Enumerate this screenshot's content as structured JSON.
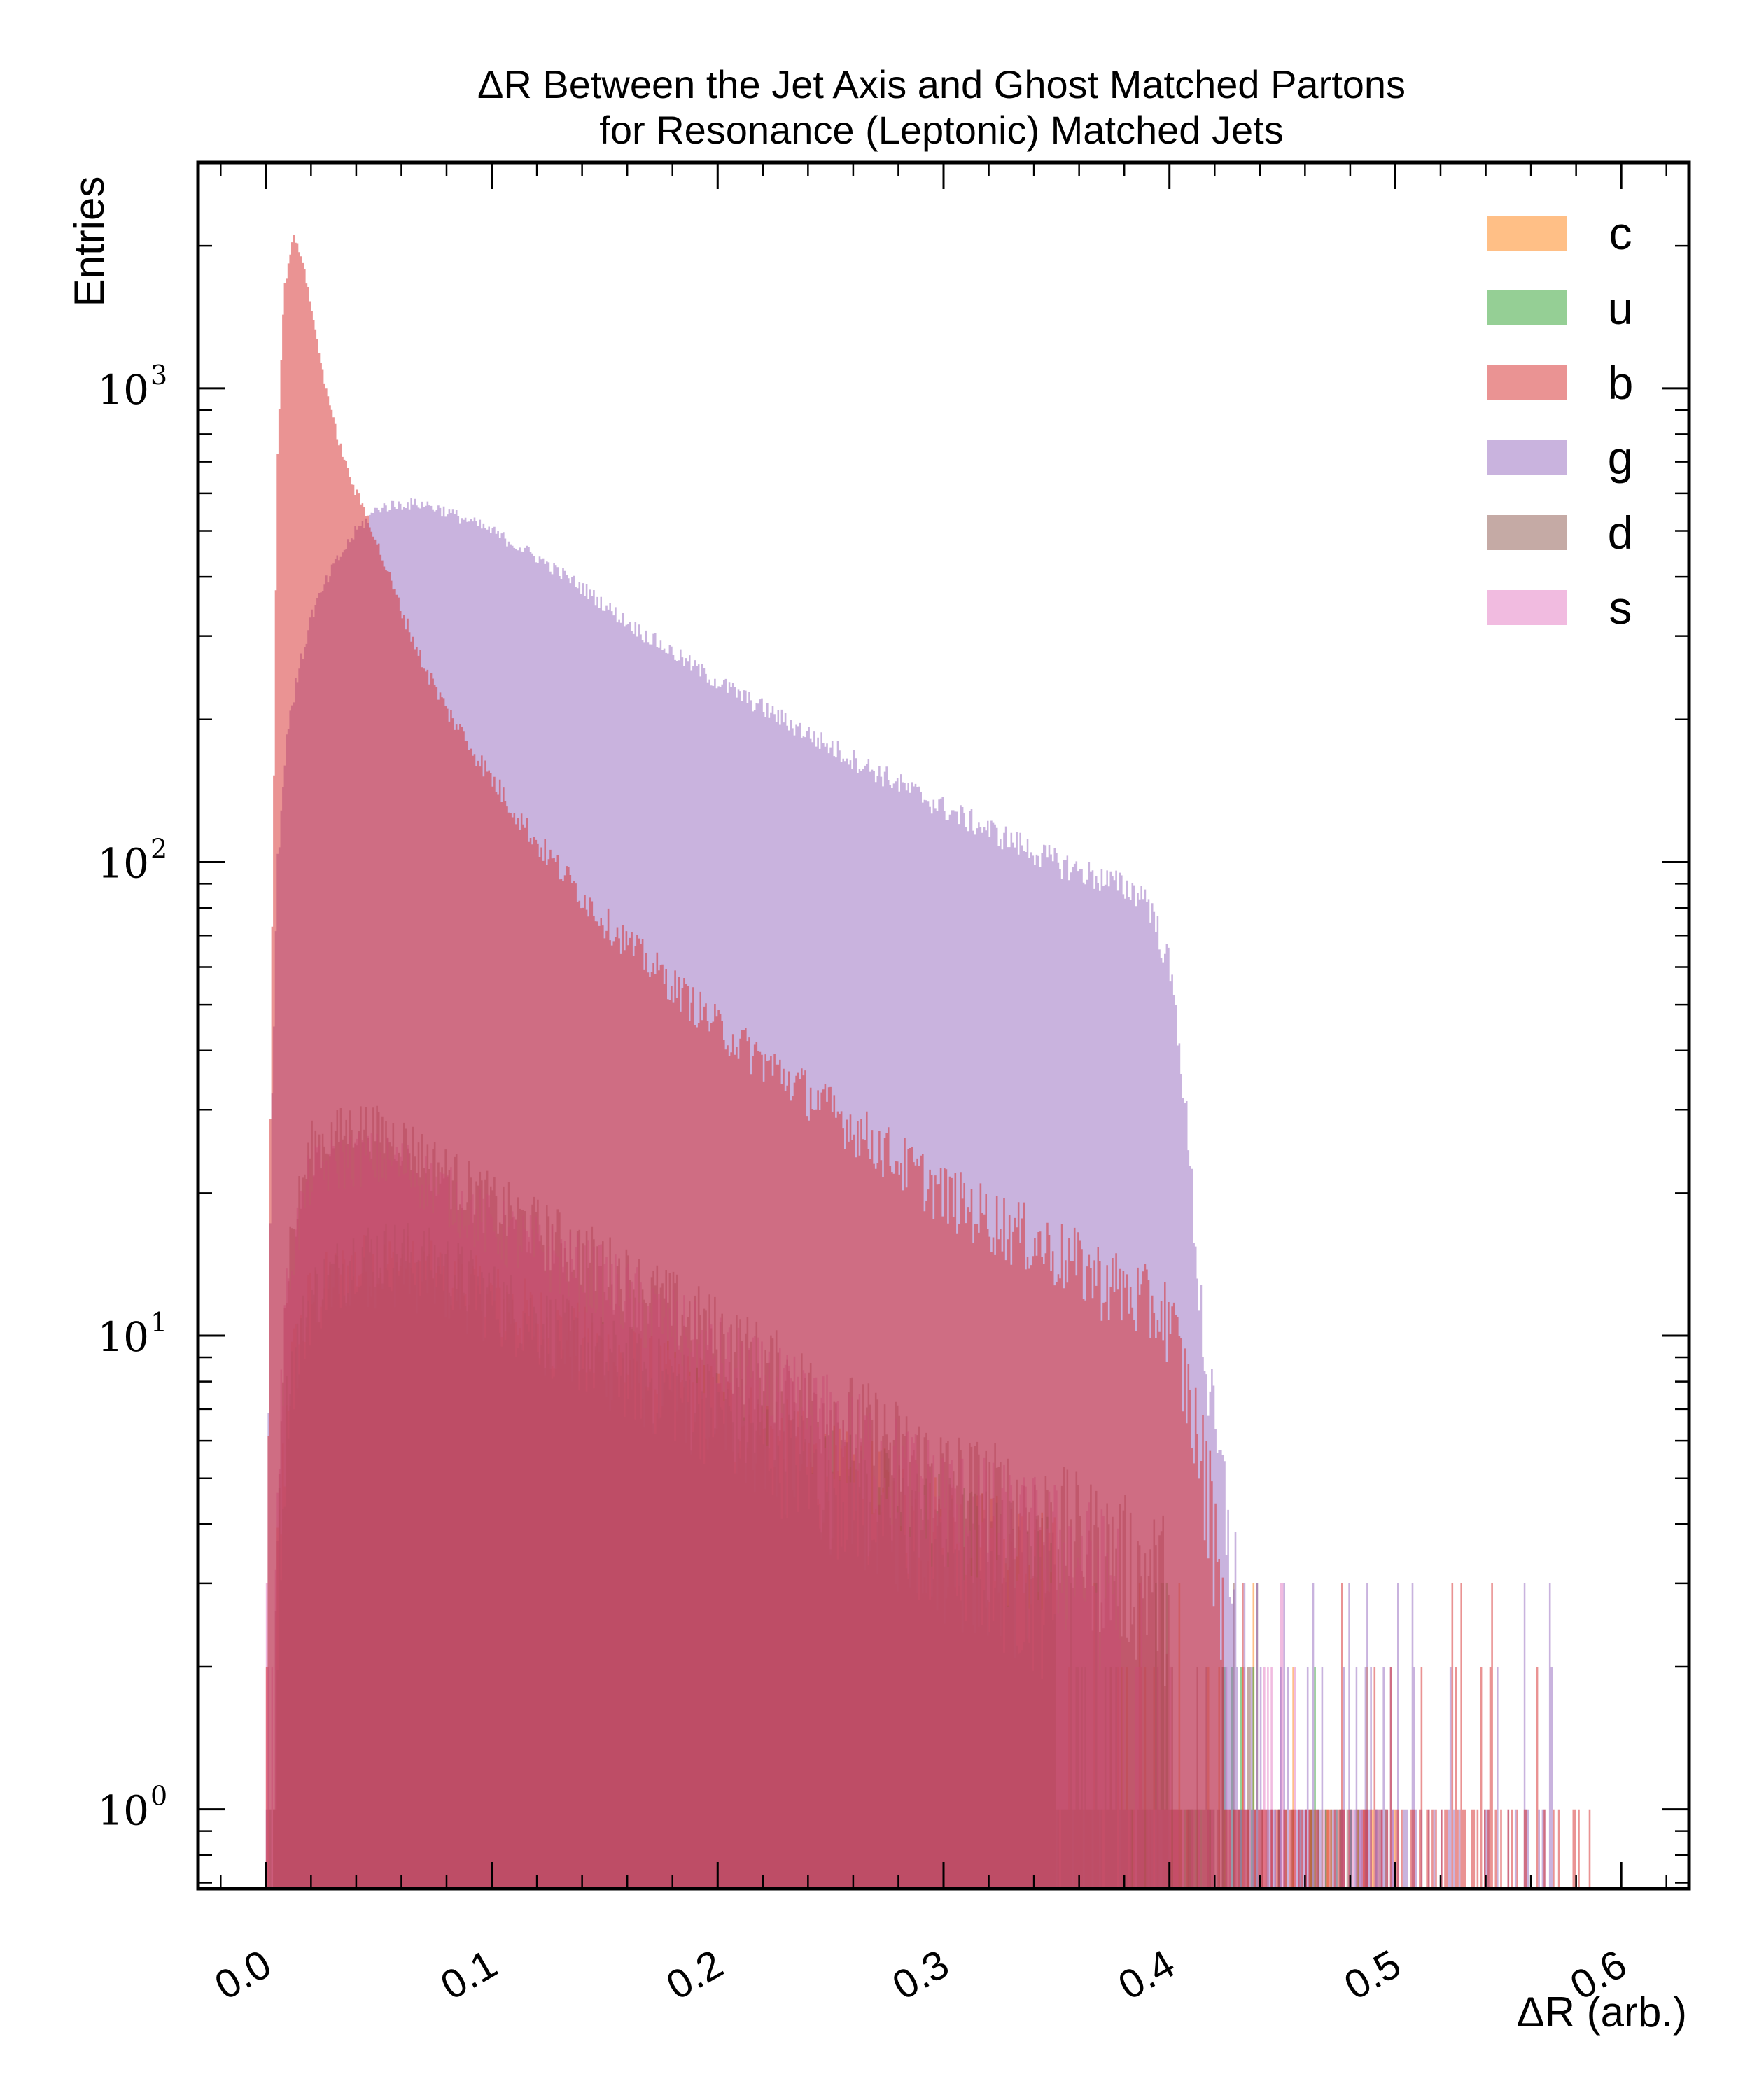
{
  "chart_data": {
    "type": "bar",
    "title": "ΔR Between the Jet Axis and Ghost Matched Partons",
    "subtitle": "for Resonance (Leptonic) Matched Jets",
    "xlabel": "ΔR (arb.)",
    "ylabel": "Entries",
    "xlim": [
      -0.03,
      0.63
    ],
    "ylim": [
      0.68,
      3000
    ],
    "yscale": "log",
    "grid": false,
    "legend_position": "top-right",
    "x_ticks": [
      "0.0",
      "0.1",
      "0.2",
      "0.3",
      "0.4",
      "0.5",
      "0.6"
    ],
    "y_ticks": [
      {
        "base": "10",
        "exp": "0"
      },
      {
        "base": "10",
        "exp": "1"
      },
      {
        "base": "10",
        "exp": "2"
      },
      {
        "base": "10",
        "exp": "3"
      }
    ],
    "series": [
      {
        "name": "c",
        "color": "#ff7f0e",
        "points": [
          [
            0.0,
            0.8
          ],
          [
            0.005,
            3
          ],
          [
            0.01,
            8
          ],
          [
            0.02,
            12
          ],
          [
            0.04,
            14
          ],
          [
            0.06,
            14
          ],
          [
            0.08,
            13
          ],
          [
            0.1,
            12
          ],
          [
            0.15,
            9
          ],
          [
            0.2,
            7
          ],
          [
            0.25,
            5
          ],
          [
            0.3,
            3.8
          ],
          [
            0.35,
            3
          ],
          [
            0.4,
            2.2
          ],
          [
            0.415,
            1
          ],
          [
            0.44,
            0.8
          ],
          [
            0.5,
            0.8
          ]
        ]
      },
      {
        "name": "u",
        "color": "#2ca02c",
        "points": [
          [
            0.0,
            0.8
          ],
          [
            0.005,
            3
          ],
          [
            0.01,
            8
          ],
          [
            0.02,
            12
          ],
          [
            0.04,
            15
          ],
          [
            0.06,
            15
          ],
          [
            0.08,
            14
          ],
          [
            0.1,
            12
          ],
          [
            0.15,
            9
          ],
          [
            0.2,
            7
          ],
          [
            0.25,
            5
          ],
          [
            0.3,
            3.8
          ],
          [
            0.35,
            3
          ],
          [
            0.4,
            2.2
          ],
          [
            0.415,
            1
          ],
          [
            0.44,
            0.8
          ],
          [
            0.5,
            0.8
          ]
        ]
      },
      {
        "name": "b",
        "color": "#d62728",
        "points": [
          [
            0.0,
            1
          ],
          [
            0.002,
            30
          ],
          [
            0.005,
            700
          ],
          [
            0.008,
            1600
          ],
          [
            0.012,
            2100
          ],
          [
            0.016,
            1900
          ],
          [
            0.02,
            1500
          ],
          [
            0.025,
            1100
          ],
          [
            0.03,
            850
          ],
          [
            0.035,
            700
          ],
          [
            0.04,
            600
          ],
          [
            0.045,
            540
          ],
          [
            0.05,
            460
          ],
          [
            0.06,
            340
          ],
          [
            0.07,
            260
          ],
          [
            0.08,
            210
          ],
          [
            0.1,
            150
          ],
          [
            0.12,
            110
          ],
          [
            0.15,
            75
          ],
          [
            0.2,
            45
          ],
          [
            0.25,
            30
          ],
          [
            0.3,
            20
          ],
          [
            0.35,
            15
          ],
          [
            0.4,
            11
          ],
          [
            0.41,
            7
          ],
          [
            0.42,
            4
          ],
          [
            0.43,
            2
          ],
          [
            0.45,
            1.5
          ],
          [
            0.5,
            1.2
          ],
          [
            0.55,
            1
          ],
          [
            0.59,
            1
          ]
        ]
      },
      {
        "name": "g",
        "color": "#9467bd",
        "points": [
          [
            0.0,
            1
          ],
          [
            0.002,
            20
          ],
          [
            0.005,
            100
          ],
          [
            0.01,
            200
          ],
          [
            0.02,
            330
          ],
          [
            0.03,
            420
          ],
          [
            0.04,
            500
          ],
          [
            0.05,
            560
          ],
          [
            0.06,
            570
          ],
          [
            0.07,
            570
          ],
          [
            0.08,
            550
          ],
          [
            0.1,
            500
          ],
          [
            0.12,
            440
          ],
          [
            0.14,
            380
          ],
          [
            0.16,
            320
          ],
          [
            0.2,
            240
          ],
          [
            0.25,
            175
          ],
          [
            0.3,
            130
          ],
          [
            0.35,
            100
          ],
          [
            0.39,
            85
          ],
          [
            0.4,
            60
          ],
          [
            0.405,
            40
          ],
          [
            0.41,
            20
          ],
          [
            0.415,
            10
          ],
          [
            0.42,
            6
          ],
          [
            0.43,
            3
          ],
          [
            0.45,
            2
          ],
          [
            0.5,
            1.5
          ],
          [
            0.55,
            1
          ],
          [
            0.57,
            1
          ]
        ]
      },
      {
        "name": "d",
        "color": "#8c564b",
        "points": [
          [
            0.0,
            0.8
          ],
          [
            0.005,
            5
          ],
          [
            0.01,
            15
          ],
          [
            0.02,
            25
          ],
          [
            0.04,
            28
          ],
          [
            0.06,
            26
          ],
          [
            0.08,
            22
          ],
          [
            0.1,
            19
          ],
          [
            0.15,
            14
          ],
          [
            0.2,
            10
          ],
          [
            0.25,
            7
          ],
          [
            0.3,
            5
          ],
          [
            0.35,
            4
          ],
          [
            0.4,
            3
          ],
          [
            0.415,
            1.2
          ],
          [
            0.44,
            1
          ],
          [
            0.5,
            0.8
          ]
        ]
      },
      {
        "name": "s",
        "color": "#e377c2",
        "points": [
          [
            0.0,
            0.8
          ],
          [
            0.005,
            5
          ],
          [
            0.01,
            14
          ],
          [
            0.02,
            22
          ],
          [
            0.04,
            24
          ],
          [
            0.06,
            23
          ],
          [
            0.08,
            20
          ],
          [
            0.1,
            17
          ],
          [
            0.15,
            13
          ],
          [
            0.2,
            9
          ],
          [
            0.25,
            6.5
          ],
          [
            0.3,
            4.5
          ],
          [
            0.35,
            3.6
          ],
          [
            0.4,
            2.6
          ],
          [
            0.415,
            1.1
          ],
          [
            0.44,
            1
          ],
          [
            0.5,
            0.8
          ]
        ]
      }
    ]
  }
}
